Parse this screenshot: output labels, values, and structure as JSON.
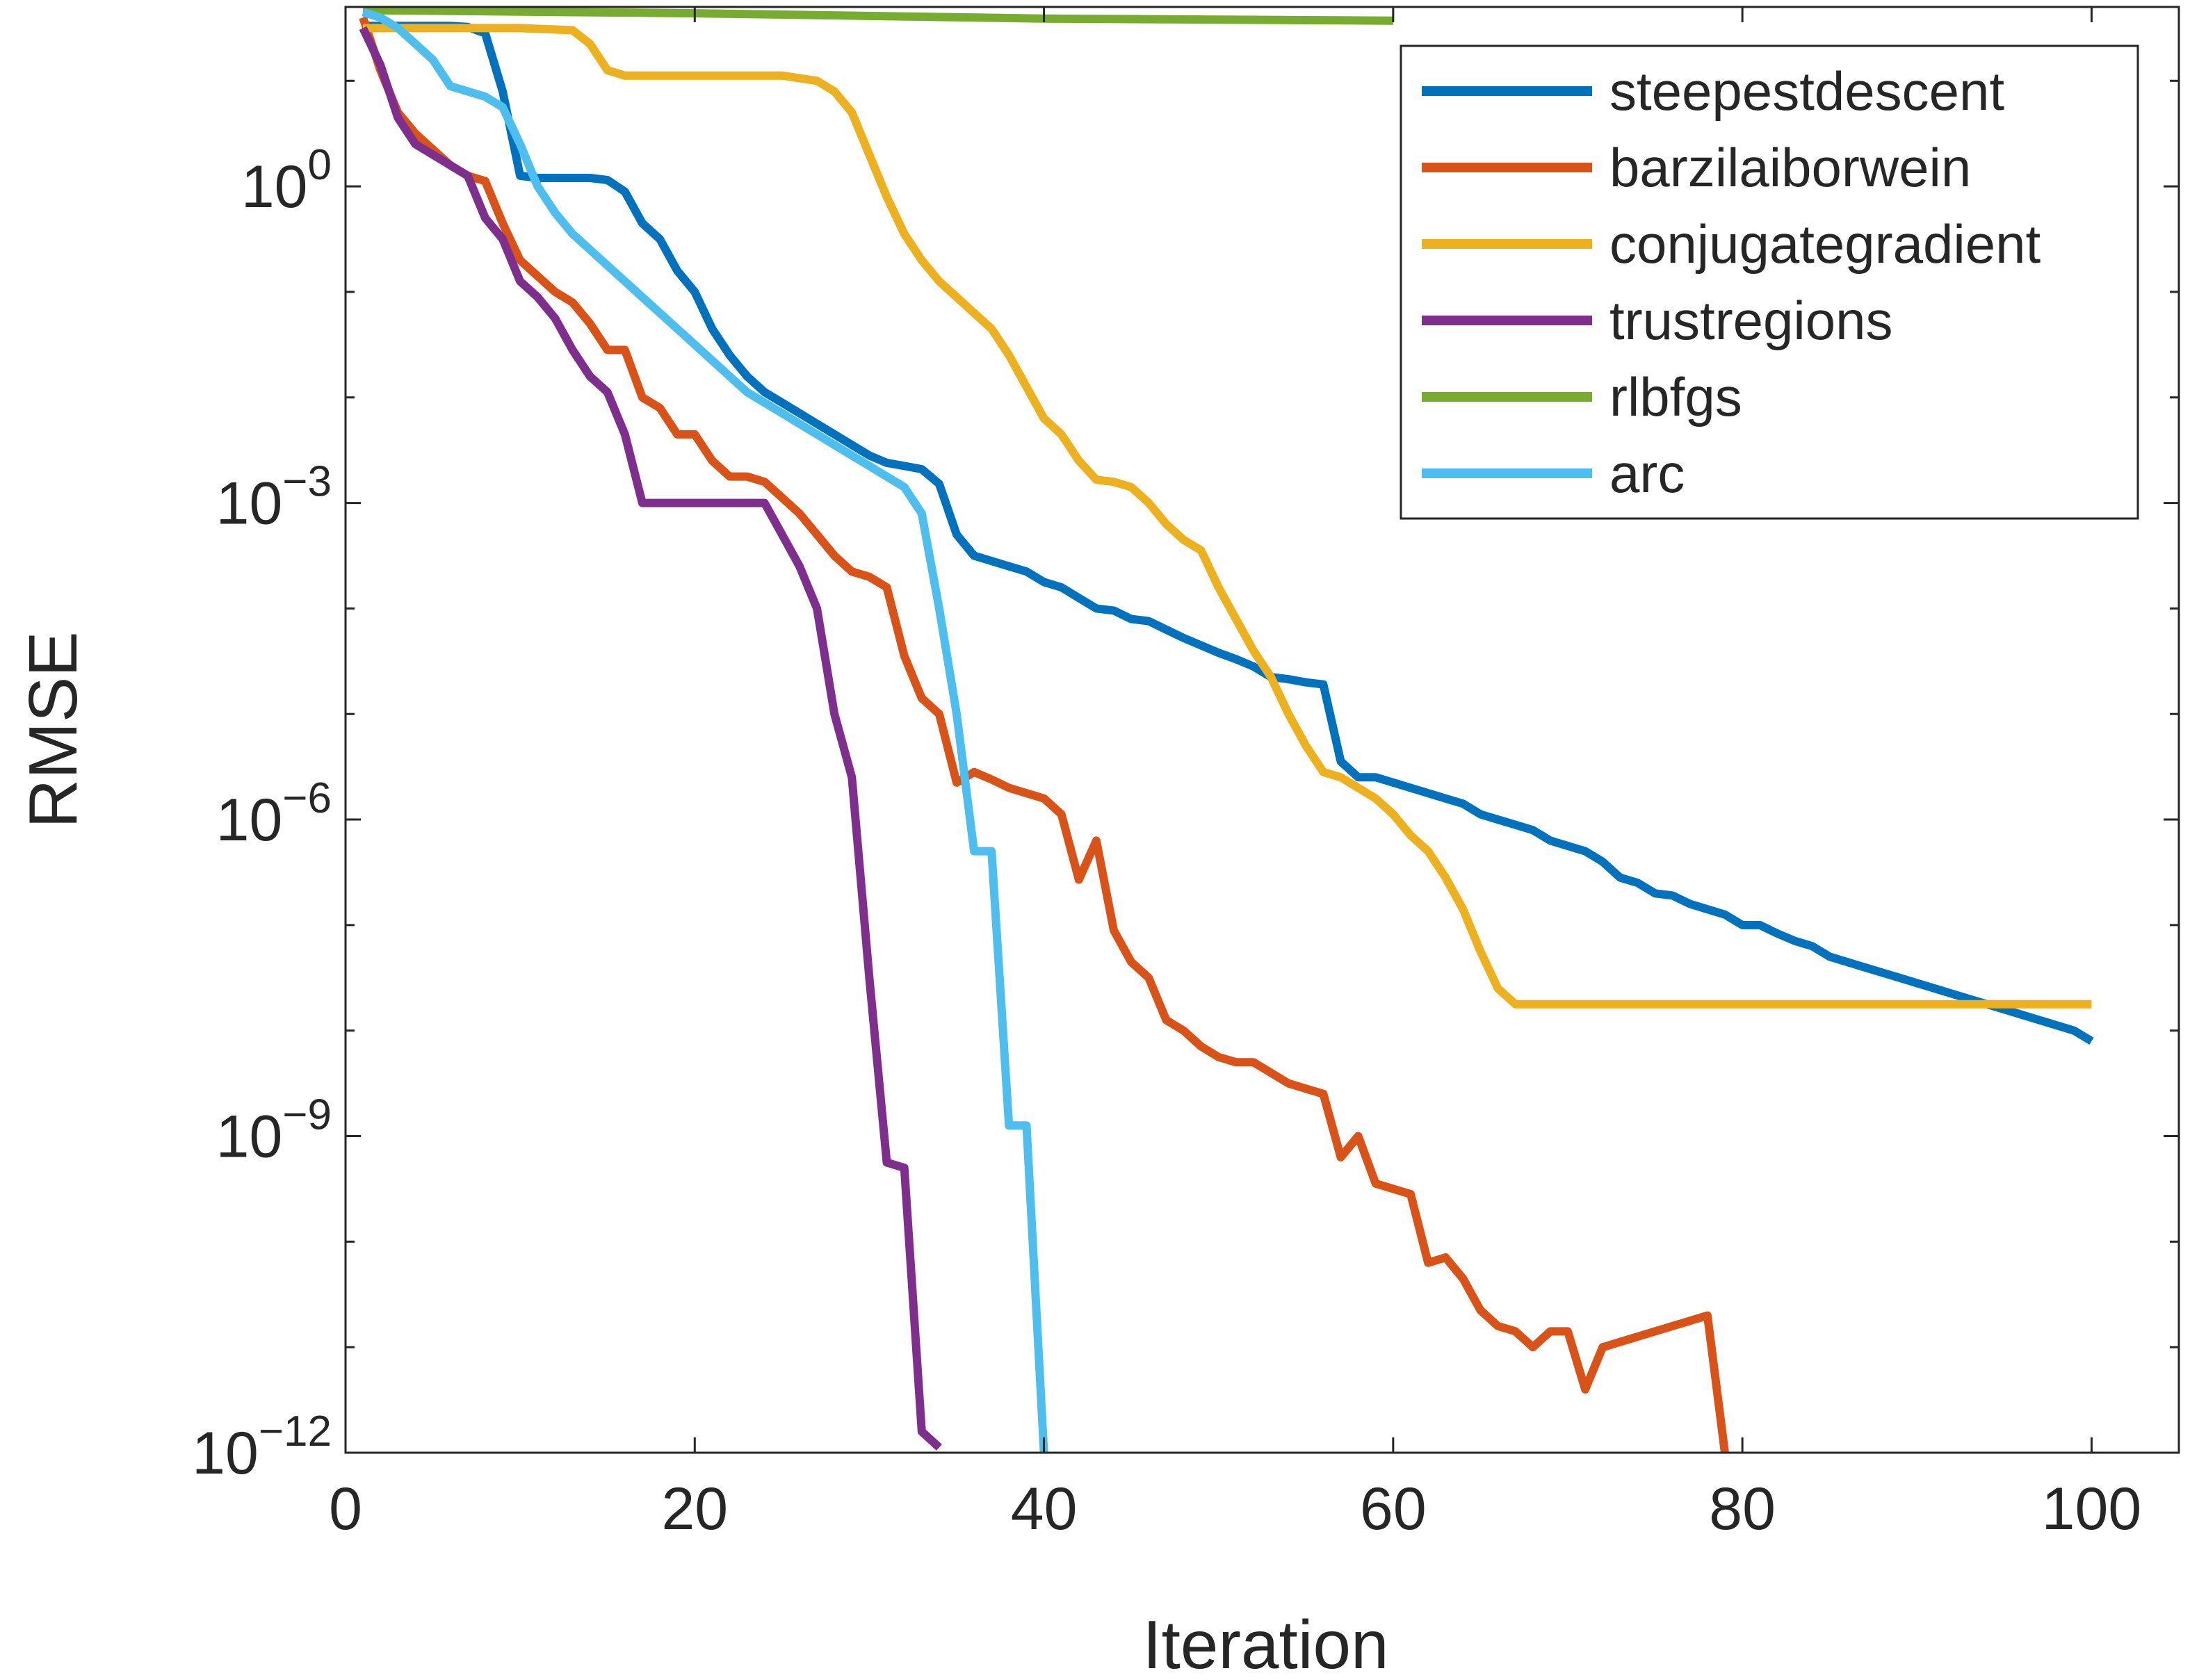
{
  "chart_data": {
    "type": "line",
    "title": "",
    "xlabel": "Iteration",
    "ylabel": "RMSE",
    "xlim": [
      0,
      105
    ],
    "xticks": [
      0,
      20,
      40,
      60,
      80,
      100
    ],
    "xtick_labels": [
      "0",
      "20",
      "40",
      "60",
      "80",
      "100"
    ],
    "yscale": "log",
    "ylim_log10": [
      -12,
      1.7
    ],
    "yticks_log10": [
      0,
      -3,
      -6,
      -9,
      -12
    ],
    "ytick_labels": [
      {
        "base": "10",
        "exp": "0"
      },
      {
        "base": "10",
        "exp": "−3"
      },
      {
        "base": "10",
        "exp": "−6"
      },
      {
        "base": "10",
        "exp": "−9"
      },
      {
        "base": "10",
        "exp": "−12"
      }
    ],
    "legend_position": "top-right",
    "series": [
      {
        "name": "steepestdescent",
        "color": "#0072BD",
        "x": [
          1,
          5,
          6,
          7,
          8,
          9,
          10,
          11,
          14,
          15,
          16,
          17,
          18,
          19,
          20,
          21,
          22,
          23,
          24,
          25,
          26,
          27,
          28,
          29,
          30,
          31,
          32,
          33,
          34,
          35,
          36,
          37,
          38,
          39,
          40,
          41,
          42,
          43,
          44,
          45,
          46,
          47,
          48,
          49,
          50,
          51,
          52,
          53,
          54,
          55,
          56,
          57,
          58,
          59,
          60,
          61,
          62,
          63,
          64,
          65,
          66,
          67,
          68,
          69,
          70,
          71,
          72,
          73,
          74,
          75,
          76,
          77,
          78,
          79,
          80,
          81,
          82,
          83,
          84,
          85,
          86,
          87,
          88,
          89,
          90,
          91,
          92,
          93,
          94,
          95,
          96,
          97,
          98,
          99,
          100
        ],
        "y_log10": [
          1.52,
          1.52,
          1.52,
          1.51,
          1.45,
          0.9,
          0.1,
          0.08,
          0.08,
          0.06,
          -0.05,
          -0.35,
          -0.5,
          -0.8,
          -1.0,
          -1.35,
          -1.6,
          -1.8,
          -1.95,
          -2.05,
          -2.15,
          -2.25,
          -2.35,
          -2.45,
          -2.55,
          -2.62,
          -2.65,
          -2.68,
          -2.82,
          -3.3,
          -3.5,
          -3.55,
          -3.6,
          -3.65,
          -3.75,
          -3.8,
          -3.9,
          -4.0,
          -4.02,
          -4.1,
          -4.12,
          -4.2,
          -4.28,
          -4.35,
          -4.42,
          -4.48,
          -4.55,
          -4.65,
          -4.67,
          -4.7,
          -4.72,
          -5.45,
          -5.6,
          -5.6,
          -5.65,
          -5.7,
          -5.75,
          -5.8,
          -5.85,
          -5.95,
          -6.0,
          -6.05,
          -6.1,
          -6.2,
          -6.25,
          -6.3,
          -6.4,
          -6.55,
          -6.6,
          -6.7,
          -6.72,
          -6.8,
          -6.85,
          -6.9,
          -7.0,
          -7.0,
          -7.08,
          -7.15,
          -7.2,
          -7.3,
          -7.35,
          -7.4,
          -7.45,
          -7.5,
          -7.55,
          -7.6,
          -7.65,
          -7.7,
          -7.75,
          -7.8,
          -7.85,
          -7.9,
          -7.95,
          -8.0,
          -8.1
        ]
      },
      {
        "name": "barzilaiborwein",
        "color": "#D95319",
        "x": [
          1,
          2,
          3,
          4,
          5,
          6,
          7,
          8,
          9,
          10,
          11,
          12,
          13,
          14,
          15,
          16,
          17,
          18,
          19,
          20,
          21,
          22,
          23,
          24,
          25,
          26,
          27,
          28,
          29,
          30,
          31,
          32,
          33,
          34,
          35,
          36,
          37,
          38,
          39,
          40,
          41,
          42,
          43,
          44,
          45,
          46,
          47,
          48,
          49,
          50,
          51,
          52,
          53,
          54,
          55,
          56,
          57,
          58,
          59,
          60,
          61,
          62,
          63,
          64,
          65,
          66,
          67,
          68,
          69,
          70,
          71,
          72,
          73,
          74,
          75,
          76,
          77,
          78,
          79
        ],
        "y_log10": [
          1.6,
          1.1,
          0.7,
          0.5,
          0.35,
          0.2,
          0.1,
          0.05,
          -0.35,
          -0.7,
          -0.85,
          -1.0,
          -1.1,
          -1.3,
          -1.55,
          -1.55,
          -2.0,
          -2.1,
          -2.35,
          -2.35,
          -2.6,
          -2.75,
          -2.75,
          -2.8,
          -2.95,
          -3.1,
          -3.3,
          -3.5,
          -3.65,
          -3.7,
          -3.8,
          -4.45,
          -4.85,
          -5.0,
          -5.65,
          -5.55,
          -5.62,
          -5.7,
          -5.75,
          -5.8,
          -5.95,
          -6.57,
          -6.2,
          -7.05,
          -7.35,
          -7.5,
          -7.9,
          -8.0,
          -8.15,
          -8.25,
          -8.3,
          -8.3,
          -8.4,
          -8.5,
          -8.55,
          -8.6,
          -9.2,
          -9.0,
          -9.45,
          -9.5,
          -9.55,
          -10.2,
          -10.15,
          -10.35,
          -10.65,
          -10.8,
          -10.85,
          -11.0,
          -10.85,
          -10.85,
          -11.4,
          -11.0,
          -10.95,
          -10.9,
          -10.85,
          -10.8,
          -10.75,
          -10.7,
          -12.0
        ]
      },
      {
        "name": "conjugategradient",
        "color": "#EDB120",
        "x": [
          1,
          5,
          10,
          13,
          14,
          15,
          16,
          20,
          25,
          27,
          28,
          29,
          30,
          31,
          32,
          33,
          34,
          35,
          36,
          37,
          38,
          39,
          40,
          41,
          42,
          43,
          44,
          45,
          46,
          47,
          48,
          49,
          50,
          51,
          52,
          53,
          54,
          55,
          56,
          57,
          58,
          59,
          60,
          61,
          62,
          63,
          64,
          65,
          66,
          67,
          100
        ],
        "y_log10": [
          1.5,
          1.5,
          1.5,
          1.48,
          1.35,
          1.1,
          1.05,
          1.05,
          1.05,
          1.0,
          0.9,
          0.7,
          0.3,
          -0.1,
          -0.45,
          -0.7,
          -0.9,
          -1.05,
          -1.2,
          -1.35,
          -1.6,
          -1.9,
          -2.2,
          -2.35,
          -2.6,
          -2.78,
          -2.8,
          -2.85,
          -3.0,
          -3.2,
          -3.35,
          -3.45,
          -3.8,
          -4.1,
          -4.4,
          -4.65,
          -5.0,
          -5.3,
          -5.55,
          -5.6,
          -5.7,
          -5.8,
          -5.95,
          -6.15,
          -6.3,
          -6.55,
          -6.85,
          -7.25,
          -7.6,
          -7.75,
          -7.75
        ]
      },
      {
        "name": "trustregions",
        "color": "#7E2F8E",
        "x": [
          1,
          2,
          3,
          4,
          5,
          6,
          7,
          8,
          9,
          10,
          11,
          12,
          13,
          14,
          15,
          16,
          17,
          24,
          25,
          26,
          27,
          28,
          29,
          30,
          31,
          32,
          33,
          34
        ],
        "y_log10": [
          1.5,
          1.15,
          0.65,
          0.4,
          0.3,
          0.2,
          0.1,
          -0.3,
          -0.5,
          -0.9,
          -1.05,
          -1.25,
          -1.55,
          -1.8,
          -1.95,
          -2.35,
          -3.0,
          -3.0,
          -3.3,
          -3.6,
          -4.0,
          -5.0,
          -5.6,
          -7.5,
          -9.25,
          -9.3,
          -11.8,
          -11.95
        ]
      },
      {
        "name": "rlbfgs",
        "color": "#77AC30",
        "x": [
          1,
          20,
          40,
          60
        ],
        "y_log10": [
          1.67,
          1.64,
          1.59,
          1.57
        ]
      },
      {
        "name": "arc",
        "color": "#4DBEEE",
        "x": [
          1,
          2,
          3,
          4,
          5,
          6,
          7,
          8,
          9,
          10,
          11,
          12,
          13,
          14,
          15,
          16,
          17,
          18,
          19,
          20,
          21,
          22,
          23,
          24,
          25,
          26,
          27,
          28,
          29,
          30,
          31,
          32,
          33,
          34,
          35,
          36,
          37,
          38,
          39,
          40
        ],
        "y_log10": [
          1.65,
          1.6,
          1.5,
          1.35,
          1.2,
          0.95,
          0.9,
          0.85,
          0.75,
          0.4,
          0.0,
          -0.25,
          -0.45,
          -0.6,
          -0.75,
          -0.9,
          -1.05,
          -1.2,
          -1.35,
          -1.5,
          -1.65,
          -1.8,
          -1.95,
          -2.05,
          -2.15,
          -2.25,
          -2.35,
          -2.45,
          -2.55,
          -2.65,
          -2.75,
          -2.85,
          -3.1,
          -4.0,
          -5.0,
          -6.3,
          -6.3,
          -8.9,
          -8.9,
          -12.0
        ]
      }
    ]
  }
}
